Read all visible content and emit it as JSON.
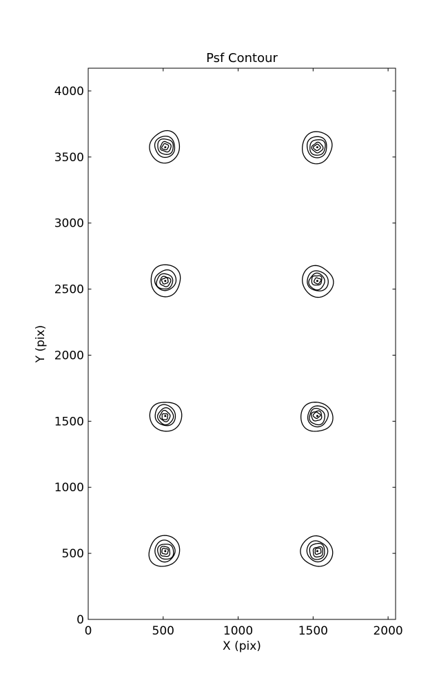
{
  "chart_data": {
    "type": "contour",
    "title": "Psf Contour",
    "xlabel": "X (pix)",
    "ylabel": "Y (pix)",
    "xlim": [
      0,
      2050
    ],
    "ylim": [
      0,
      4172
    ],
    "xticks": [
      0,
      500,
      1000,
      1500,
      2000
    ],
    "yticks": [
      0,
      500,
      1000,
      1500,
      2000,
      2500,
      3000,
      3500,
      4000
    ],
    "grid": false,
    "legend": "none",
    "line_color": "#000000",
    "background_color": "#ffffff",
    "psf_centers": [
      {
        "x": 514,
        "y": 517
      },
      {
        "x": 1528,
        "y": 517
      },
      {
        "x": 514,
        "y": 1540
      },
      {
        "x": 1528,
        "y": 1540
      },
      {
        "x": 514,
        "y": 2562
      },
      {
        "x": 1528,
        "y": 2562
      },
      {
        "x": 514,
        "y": 3574
      },
      {
        "x": 1528,
        "y": 3574
      }
    ],
    "contour_level_radii_x": [
      103,
      69,
      53,
      34,
      21
    ],
    "contour_level_radii_y": [
      117,
      78,
      60,
      39,
      23
    ],
    "center_dot_radius": 7
  }
}
